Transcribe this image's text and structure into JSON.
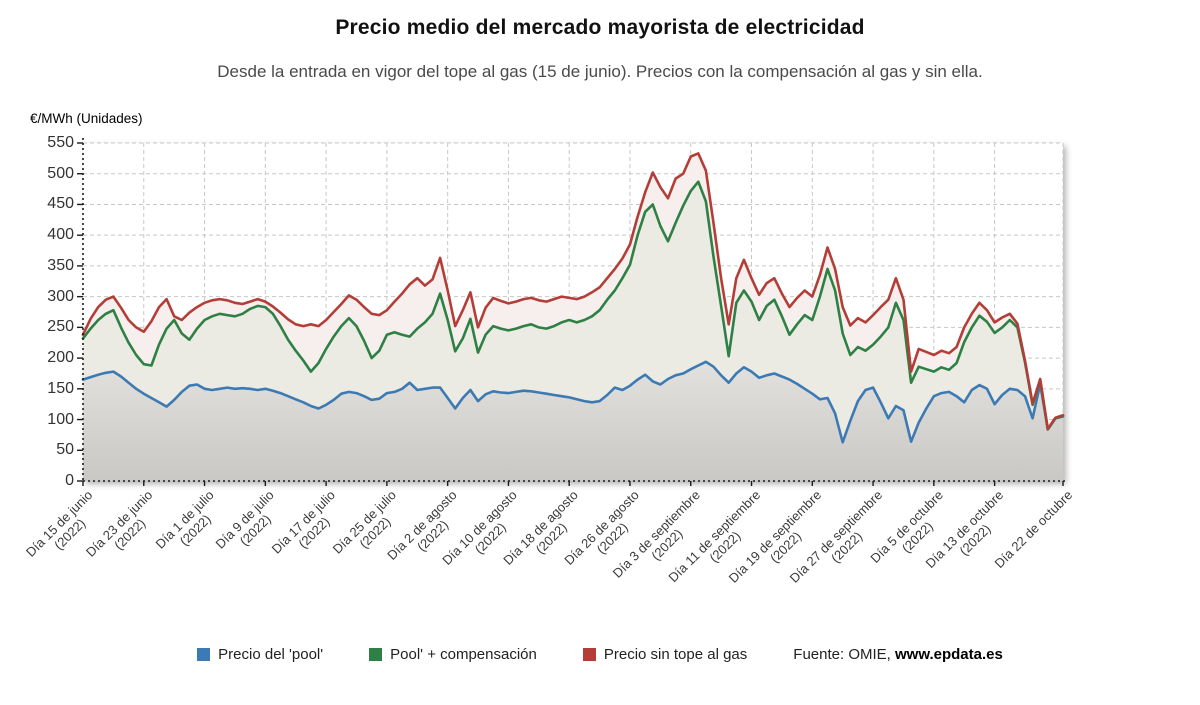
{
  "header": {
    "title": "Precio medio del mercado mayorista de electricidad",
    "subtitle": "Desde la entrada en vigor del tope al gas (15 de junio). Precios con la compensación al gas y sin ella."
  },
  "source": {
    "prefix": "Fuente: OMIE, ",
    "site": "www.epdata.es"
  },
  "chart_data": {
    "type": "line",
    "title": "Precio medio del mercado mayorista de electricidad",
    "subtitle": "Desde la entrada en vigor del tope al gas (15 de junio). Precios con la compensación al gas y sin ella.",
    "ylabel": "€/MWh (Unidades)",
    "xlabel": "",
    "ylim": [
      0,
      550
    ],
    "ytick_step": 50,
    "grid": true,
    "legend_position": "bottom",
    "x_start": "2022-06-15",
    "x_end": "2022-10-22",
    "x_frequency": "daily",
    "x_ticks": [
      {
        "i": 0,
        "label": "Día 15 de junio",
        "sub": "(2022)"
      },
      {
        "i": 8,
        "label": "Día 23 de junio",
        "sub": "(2022)"
      },
      {
        "i": 16,
        "label": "Día 1 de julio",
        "sub": "(2022)"
      },
      {
        "i": 24,
        "label": "Día 9 de julio",
        "sub": "(2022)"
      },
      {
        "i": 32,
        "label": "Día 17 de julio",
        "sub": "(2022)"
      },
      {
        "i": 40,
        "label": "Día 25 de julio",
        "sub": "(2022)"
      },
      {
        "i": 48,
        "label": "Día 2 de agosto",
        "sub": "(2022)"
      },
      {
        "i": 56,
        "label": "Día 10 de agosto",
        "sub": "(2022)"
      },
      {
        "i": 64,
        "label": "Día 18 de agosto",
        "sub": "(2022)"
      },
      {
        "i": 72,
        "label": "Día 26 de agosto",
        "sub": "(2022)"
      },
      {
        "i": 80,
        "label": "Día 3 de septiembre",
        "sub": "(2022)"
      },
      {
        "i": 88,
        "label": "Día 11 de septiembre",
        "sub": "(2022)"
      },
      {
        "i": 96,
        "label": "Día 19 de septiembre",
        "sub": "(2022)"
      },
      {
        "i": 104,
        "label": "Día 27 de septiembre",
        "sub": "(2022)"
      },
      {
        "i": 112,
        "label": "Día 5 de octubre",
        "sub": "(2022)"
      },
      {
        "i": 120,
        "label": "Día 13 de octubre",
        "sub": "(2022)"
      },
      {
        "i": 129,
        "label": "Día 22 de octubre",
        "sub": ""
      }
    ],
    "series": [
      {
        "name": "Precio del 'pool'",
        "color": "#3d7ab3",
        "values": [
          165,
          169,
          173,
          176,
          178,
          170,
          160,
          150,
          142,
          135,
          128,
          121,
          132,
          145,
          155,
          157,
          150,
          148,
          150,
          152,
          150,
          151,
          150,
          148,
          150,
          147,
          143,
          138,
          133,
          128,
          122,
          118,
          124,
          132,
          142,
          145,
          143,
          138,
          132,
          134,
          143,
          145,
          150,
          160,
          148,
          150,
          152,
          152,
          135,
          118,
          135,
          148,
          130,
          141,
          146,
          144,
          143,
          145,
          147,
          146,
          144,
          142,
          140,
          138,
          136,
          133,
          130,
          128,
          130,
          140,
          152,
          148,
          155,
          165,
          173,
          162,
          157,
          166,
          172,
          175,
          182,
          188,
          194,
          186,
          172,
          160,
          175,
          185,
          178,
          168,
          172,
          175,
          170,
          165,
          158,
          150,
          142,
          133,
          135,
          110,
          63,
          98,
          130,
          148,
          152,
          128,
          102,
          122,
          115,
          64,
          95,
          118,
          138,
          143,
          145,
          138,
          128,
          148,
          156,
          150,
          125,
          140,
          150,
          148,
          138,
          102,
          158,
          84,
          102,
          105
        ]
      },
      {
        "name": "Pool' + compensación",
        "color": "#2e8044",
        "values": [
          232,
          248,
          262,
          272,
          278,
          250,
          225,
          205,
          190,
          188,
          222,
          248,
          262,
          240,
          230,
          248,
          262,
          268,
          272,
          270,
          268,
          272,
          280,
          285,
          283,
          272,
          252,
          230,
          212,
          196,
          178,
          192,
          215,
          235,
          252,
          265,
          252,
          228,
          200,
          212,
          238,
          242,
          238,
          235,
          248,
          258,
          272,
          305,
          262,
          211,
          232,
          264,
          209,
          238,
          252,
          248,
          245,
          248,
          252,
          255,
          250,
          248,
          252,
          258,
          262,
          258,
          262,
          268,
          278,
          295,
          310,
          330,
          352,
          400,
          438,
          450,
          415,
          390,
          420,
          448,
          472,
          487,
          455,
          365,
          285,
          203,
          290,
          310,
          292,
          262,
          285,
          295,
          268,
          238,
          255,
          270,
          262,
          300,
          345,
          310,
          240,
          205,
          218,
          212,
          222,
          235,
          250,
          290,
          262,
          160,
          186,
          182,
          178,
          185,
          181,
          192,
          226,
          250,
          269,
          259,
          241,
          250,
          262,
          250,
          193,
          124,
          164,
          84,
          102,
          106
        ]
      },
      {
        "name": "Precio sin tope al gas",
        "color": "#b33e38",
        "values": [
          238,
          264,
          283,
          295,
          300,
          282,
          262,
          250,
          243,
          260,
          283,
          296,
          268,
          262,
          274,
          283,
          290,
          294,
          296,
          294,
          290,
          288,
          292,
          296,
          292,
          284,
          274,
          263,
          255,
          252,
          255,
          252,
          262,
          275,
          288,
          302,
          295,
          283,
          272,
          270,
          278,
          292,
          305,
          320,
          330,
          318,
          328,
          363,
          310,
          252,
          278,
          307,
          250,
          282,
          298,
          293,
          289,
          292,
          296,
          298,
          294,
          292,
          296,
          300,
          298,
          296,
          300,
          307,
          315,
          330,
          345,
          362,
          385,
          430,
          470,
          502,
          478,
          460,
          492,
          500,
          528,
          533,
          505,
          420,
          330,
          255,
          330,
          360,
          330,
          303,
          322,
          330,
          305,
          283,
          298,
          310,
          300,
          335,
          380,
          345,
          283,
          253,
          265,
          258,
          270,
          283,
          295,
          330,
          295,
          178,
          215,
          210,
          205,
          212,
          208,
          218,
          250,
          272,
          290,
          278,
          258,
          266,
          272,
          256,
          196,
          126,
          166,
          85,
          103,
          107
        ]
      }
    ]
  }
}
